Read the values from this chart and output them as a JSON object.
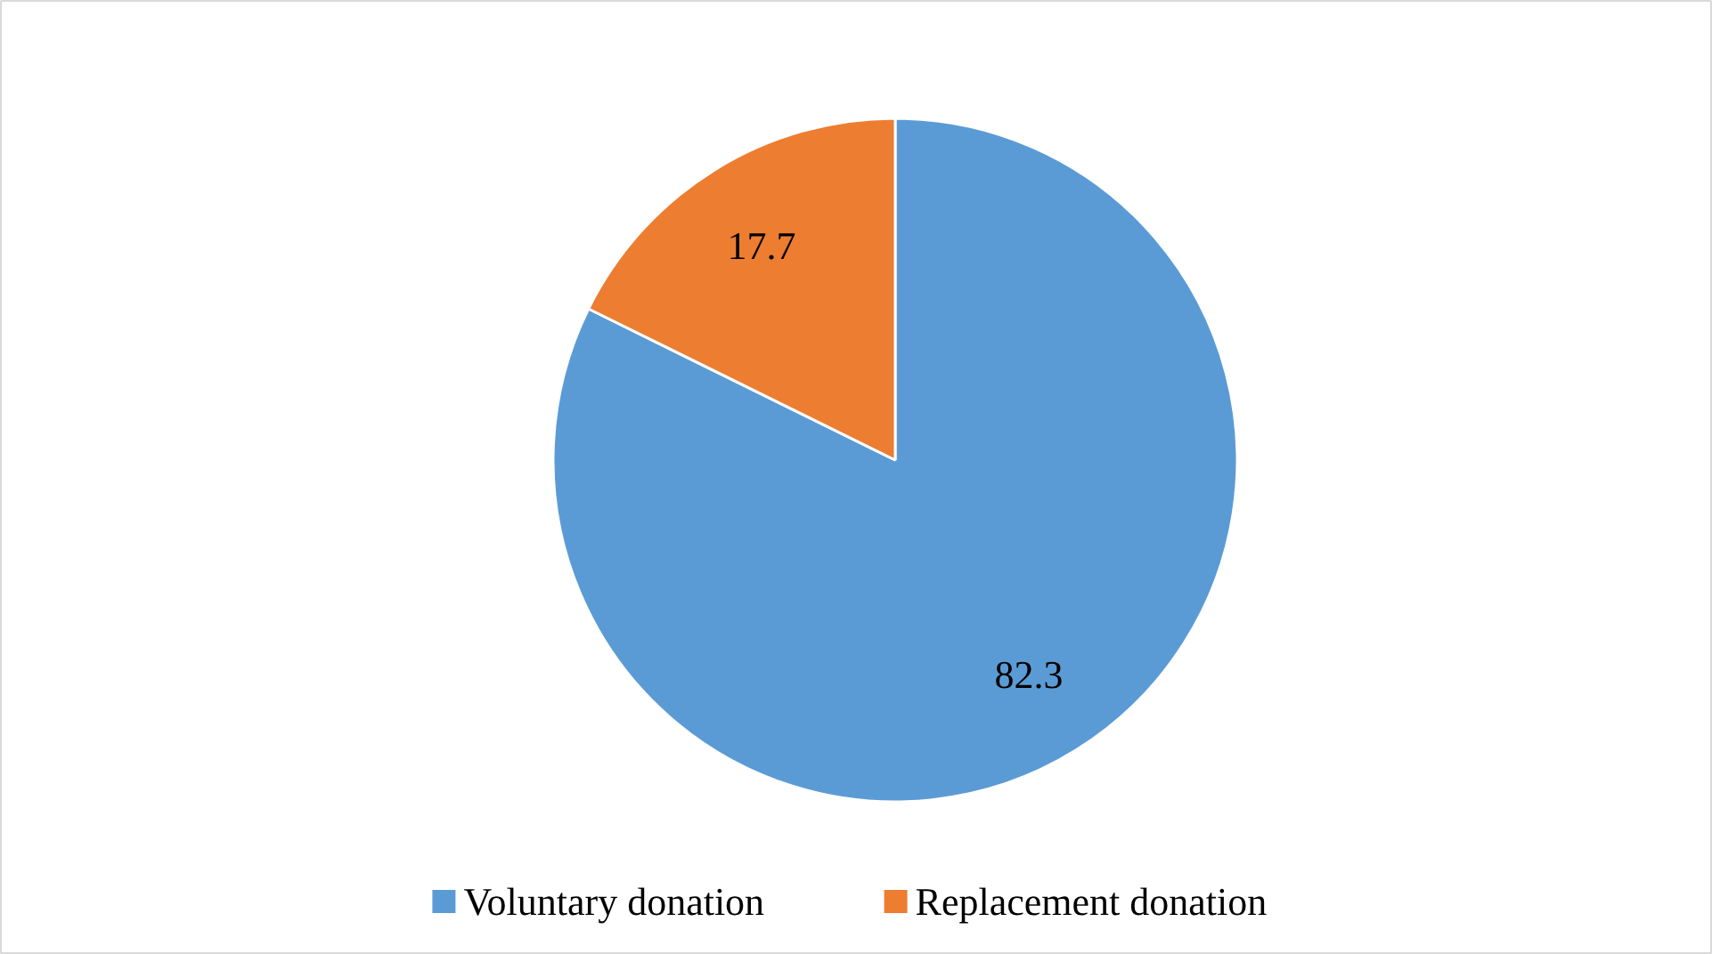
{
  "chart_data": {
    "type": "pie",
    "categories": [
      "Voluntary donation",
      "Replacement donation"
    ],
    "values": [
      82.3,
      17.7
    ],
    "colors": [
      "#5b9bd5",
      "#ed7d31"
    ],
    "data_labels": true,
    "legend": "bottom"
  }
}
